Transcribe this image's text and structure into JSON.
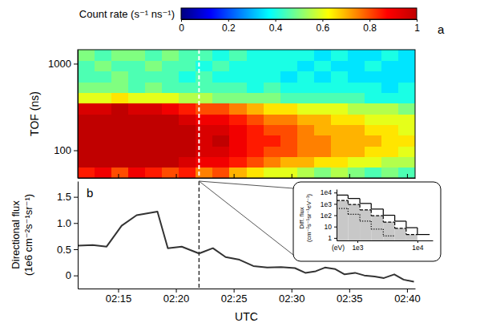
{
  "chart_data": [
    {
      "type": "heatmap",
      "panel_label": "a",
      "y_label": "TOF (ns)",
      "x_bins": [
        131.5,
        132.96,
        134.42,
        135.88,
        137.34,
        138.8,
        140.26,
        141.72,
        143.18,
        144.64,
        146.1,
        147.56,
        149.02,
        150.48,
        151.94,
        153.4,
        154.86,
        156.32,
        157.78,
        159.24,
        160.7
      ],
      "y_bins": [
        48,
        64,
        85,
        112,
        149,
        198,
        263,
        349,
        464,
        616,
        818,
        1090,
        1450
      ],
      "z": [
        [
          0.85,
          0.9,
          0.8,
          0.9,
          0.85,
          0.8,
          0.85,
          0.75,
          0.8,
          0.7,
          0.65,
          0.6,
          0.6,
          0.55,
          0.5,
          0.55,
          0.5,
          0.45,
          0.5,
          0.45
        ],
        [
          1,
          1,
          1,
          1,
          1,
          1,
          0.95,
          0.9,
          0.9,
          0.85,
          0.8,
          0.75,
          0.7,
          0.7,
          0.65,
          0.65,
          0.6,
          0.6,
          0.55,
          0.55
        ],
        [
          1,
          1,
          1,
          1,
          1,
          1,
          1,
          0.95,
          0.95,
          0.9,
          0.85,
          0.8,
          0.8,
          0.75,
          0.75,
          0.7,
          0.7,
          0.65,
          0.65,
          0.6
        ],
        [
          1,
          1,
          1,
          1,
          1,
          1,
          1,
          0.95,
          1,
          0.9,
          0.85,
          0.85,
          0.8,
          0.75,
          0.75,
          0.7,
          0.7,
          0.7,
          0.65,
          0.65
        ],
        [
          1,
          1,
          1,
          1,
          1,
          1,
          1,
          0.95,
          0.95,
          0.9,
          0.85,
          0.8,
          0.8,
          0.75,
          0.7,
          0.7,
          0.7,
          0.65,
          0.65,
          0.6
        ],
        [
          1,
          1,
          1,
          1,
          1,
          1,
          0.95,
          0.9,
          0.9,
          0.85,
          0.8,
          0.75,
          0.75,
          0.7,
          0.7,
          0.65,
          0.65,
          0.6,
          0.6,
          0.6
        ],
        [
          0.95,
          0.95,
          1,
          0.95,
          0.95,
          0.9,
          0.85,
          0.8,
          0.8,
          0.75,
          0.7,
          0.65,
          0.65,
          0.6,
          0.6,
          0.6,
          0.55,
          0.55,
          0.55,
          0.5
        ],
        [
          0.6,
          0.6,
          0.65,
          0.6,
          0.6,
          0.6,
          0.55,
          0.55,
          0.5,
          0.5,
          0.5,
          0.5,
          0.45,
          0.45,
          0.45,
          0.45,
          0.45,
          0.4,
          0.4,
          0.4
        ],
        [
          0.5,
          0.5,
          0.5,
          0.45,
          0.5,
          0.45,
          0.45,
          0.45,
          0.45,
          0.45,
          0.4,
          0.45,
          0.4,
          0.4,
          0.4,
          0.4,
          0.4,
          0.4,
          0.35,
          0.4
        ],
        [
          0.45,
          0.45,
          0.5,
          0.45,
          0.45,
          0.45,
          0.4,
          0.45,
          0.4,
          0.4,
          0.4,
          0.4,
          0.35,
          0.4,
          0.35,
          0.4,
          0.35,
          0.35,
          0.35,
          0.35
        ],
        [
          0.45,
          0.5,
          0.45,
          0.45,
          0.5,
          0.45,
          0.45,
          0.4,
          0.45,
          0.4,
          0.4,
          0.4,
          0.4,
          0.35,
          0.4,
          0.35,
          0.35,
          0.4,
          0.35,
          0.35
        ],
        [
          0.5,
          0.45,
          0.5,
          0.5,
          0.45,
          0.5,
          0.45,
          0.45,
          0.4,
          0.45,
          0.4,
          0.4,
          0.4,
          0.4,
          0.35,
          0.4,
          0.35,
          0.35,
          0.4,
          0.35
        ]
      ],
      "xlim": [
        131.5,
        160.7
      ],
      "xticks": [
        135,
        140,
        145,
        150,
        155,
        160
      ],
      "ylim": [
        48,
        1450
      ],
      "yticks": [
        100,
        1000
      ],
      "log": "y",
      "tick_labels": "y",
      "vline": 142.0,
      "colorbar": {
        "label": "Count rate (s⁻¹ ns⁻¹)",
        "range": [
          0,
          1
        ],
        "ticks": [
          0,
          0.2,
          0.4,
          0.6,
          0.8,
          1
        ]
      }
    },
    {
      "type": "line",
      "panel_label": "b",
      "x_label": "UTC",
      "y_label": "Directional flux (1e6 cm⁻²s⁻¹sr⁻¹)",
      "x": [
        131.5,
        132.8,
        134.0,
        135.3,
        136.6,
        138.4,
        139.3,
        140.5,
        142.0,
        143.2,
        144.3,
        145.5,
        146.7,
        147.9,
        149.1,
        150.3,
        151.2,
        152.1,
        152.9,
        153.8,
        154.6,
        155.5,
        156.3,
        157.2,
        158.0,
        158.9,
        159.7,
        160.6
      ],
      "values": [
        0.57,
        0.58,
        0.55,
        0.95,
        1.15,
        1.22,
        0.52,
        0.55,
        0.42,
        0.52,
        0.35,
        0.3,
        0.18,
        0.15,
        0.16,
        0.14,
        0.05,
        0.08,
        0.15,
        0.12,
        0.02,
        0.05,
        0,
        -0.02,
        -0.05,
        0.02,
        -0.08,
        -0.12
      ],
      "color": "#333333",
      "xlim": [
        131.5,
        160.7
      ],
      "xticks": [
        {
          "value": 135,
          "label": "02:15"
        },
        {
          "value": 140,
          "label": "02:20"
        },
        {
          "value": 145,
          "label": "02:25"
        },
        {
          "value": 150,
          "label": "02:30"
        },
        {
          "value": 155,
          "label": "02:35"
        },
        {
          "value": 160,
          "label": "02:40"
        }
      ],
      "ylim": [
        -0.25,
        1.8
      ],
      "yticks": [
        0,
        0.5,
        {
          "value": 1,
          "label": "1.0"
        },
        1.5
      ],
      "vline": 142.0
    },
    {
      "type": "step",
      "x_label": "(eV)",
      "y_label": "Diff. flux (cm⁻²s⁻¹sr⁻¹eV⁻¹)",
      "bins": [
        450,
        700,
        1100,
        1700,
        2700,
        4200,
        6500,
        10000,
        16000
      ],
      "series": [
        {
          "type": "area",
          "values": [
            2000,
            900,
            300,
            90,
            25,
            7,
            2,
            null
          ],
          "color": "#c8c8c8",
          "line_style": "dashed"
        },
        {
          "values": [
            6000,
            3000,
            1100,
            350,
            100,
            30,
            8,
            2
          ],
          "color": "#000000",
          "line_style": "solid"
        },
        {
          "values": [
            400,
            120,
            30,
            6,
            1.5,
            null,
            null,
            null
          ],
          "color": "#000000",
          "line_style": "dotted"
        }
      ],
      "xlim": [
        450,
        18000
      ],
      "xticks": [
        {
          "value": 1000,
          "label": "1e3"
        },
        {
          "value": 10000,
          "label": "1e4"
        }
      ],
      "ylim": [
        0.6,
        20000
      ],
      "yticks": [
        1,
        10,
        {
          "value": 100,
          "label": "1e2"
        },
        {
          "value": 1000,
          "label": "1e3"
        },
        {
          "value": 10000,
          "label": "1e4"
        }
      ],
      "log": true
    }
  ]
}
